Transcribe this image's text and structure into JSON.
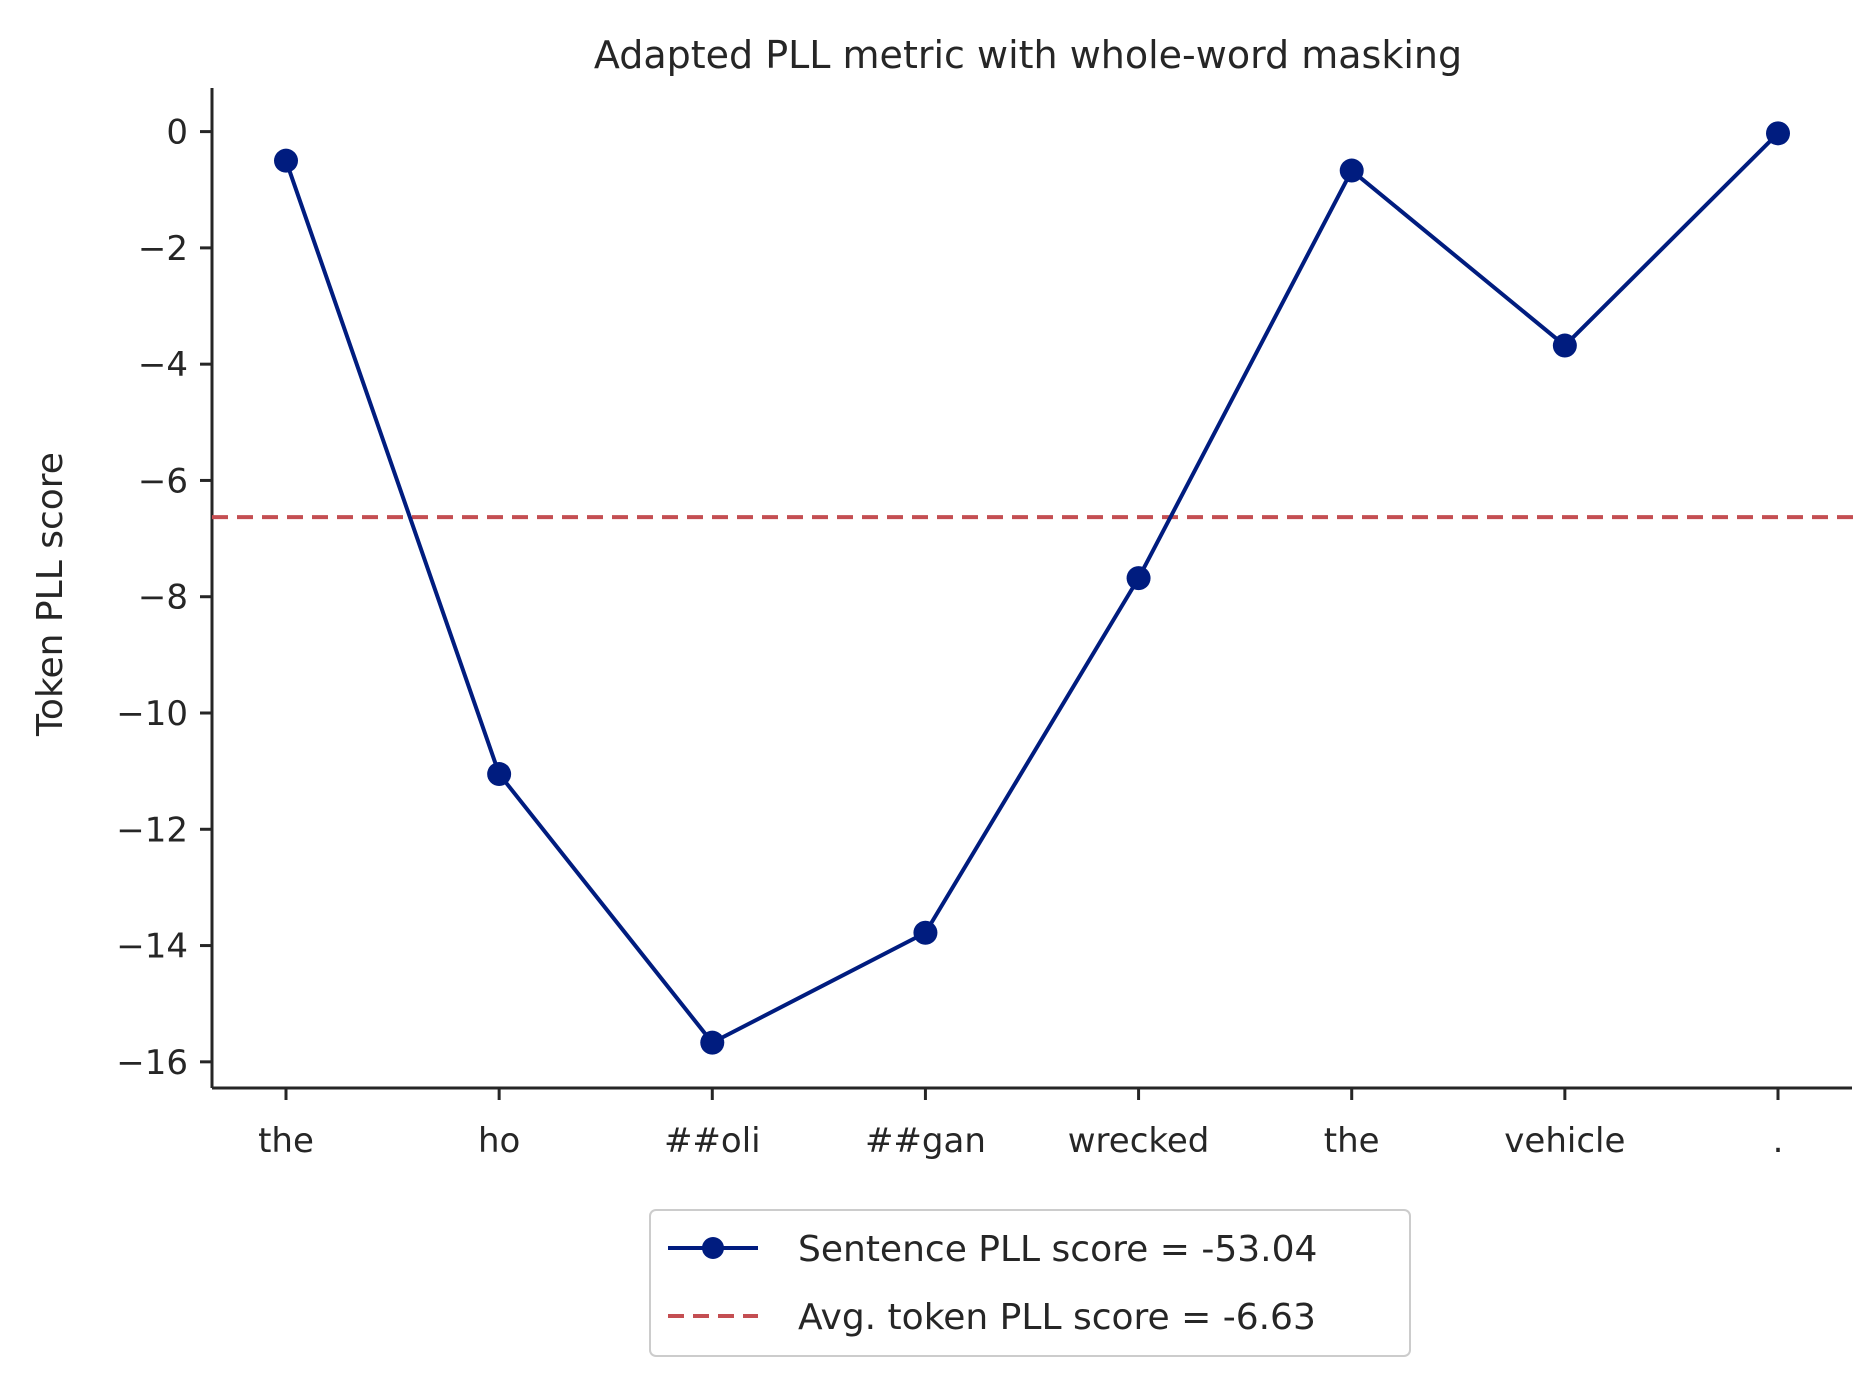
{
  "chart_data": {
    "type": "line",
    "title": "Adapted PLL metric with whole-word masking",
    "xlabel": "",
    "ylabel": "Token PLL score",
    "categories": [
      "the",
      "ho",
      "##oli",
      "##gan",
      "wrecked",
      "the",
      "vehicle",
      "."
    ],
    "series": [
      {
        "name": "Sentence PLL score = -53.04",
        "values": [
          -0.5,
          -11.05,
          -15.67,
          -13.78,
          -7.68,
          -0.67,
          -3.68,
          -0.03
        ],
        "color": "#001c7f",
        "style": "solid-with-markers"
      }
    ],
    "reference_lines": [
      {
        "name": "Avg. token PLL score = -6.63",
        "y": -6.63,
        "color": "#c44e52",
        "style": "dashed"
      }
    ],
    "y_ticks": [
      0,
      -2,
      -4,
      -6,
      -8,
      -10,
      -12,
      -14,
      -16
    ],
    "y_tick_labels": [
      "0",
      "−2",
      "−4",
      "−6",
      "−8",
      "−10",
      "−12",
      "−14",
      "−16"
    ],
    "ylim": [
      -16.45,
      0.75
    ],
    "grid": false,
    "legend_placement": "bottom-center, below axes"
  }
}
